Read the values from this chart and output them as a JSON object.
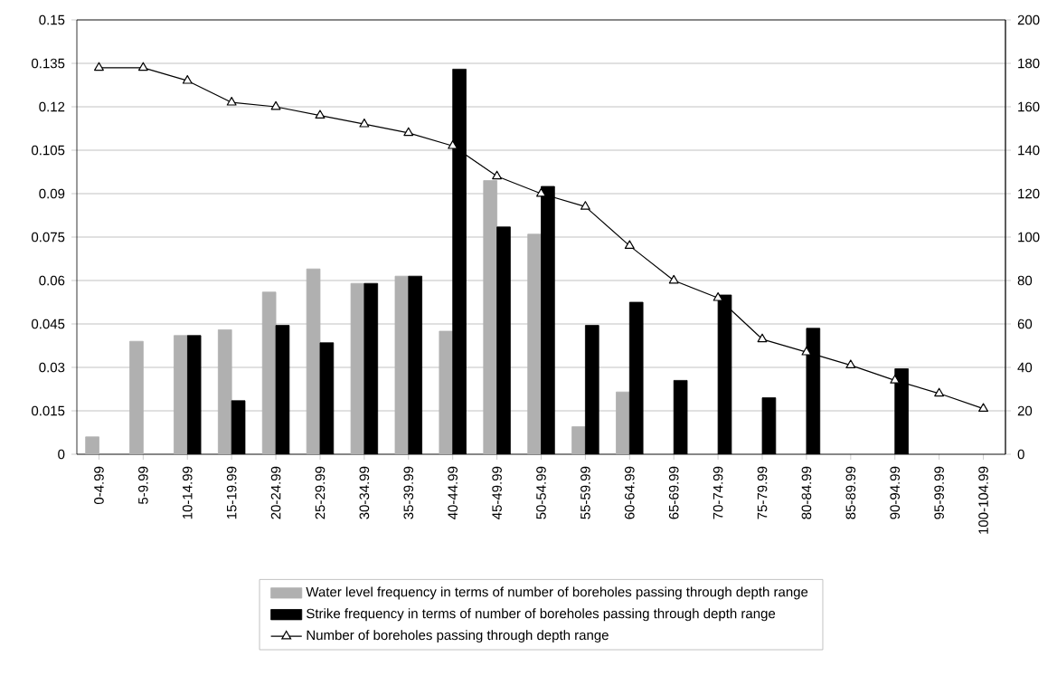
{
  "chart_data": {
    "type": "bar",
    "categories": [
      "0-4.99",
      "5-9.99",
      "10-14.99",
      "15-19.99",
      "20-24.99",
      "25-29.99",
      "30-34.99",
      "35-39.99",
      "40-44.99",
      "45-49.99",
      "50-54.99",
      "55-59.99",
      "60-64.99",
      "65-69.99",
      "70-74.99",
      "75-79.99",
      "80-84.99",
      "85-89.99",
      "90-94.99",
      "95-99.99",
      "100-104.99"
    ],
    "series": [
      {
        "name": "Water level frequency in terms of number of boreholes passing  through depth range",
        "color": "#b0b0b0",
        "values": [
          0.006,
          0.039,
          0.041,
          0.043,
          0.056,
          0.064,
          0.059,
          0.0615,
          0.0425,
          0.0945,
          0.076,
          0.0095,
          0.0215,
          null,
          null,
          null,
          null,
          null,
          null,
          null,
          null
        ]
      },
      {
        "name": "Strike frequency  in terms of number of boreholes passing  through depth range",
        "color": "#000000",
        "values": [
          null,
          null,
          0.041,
          0.0185,
          0.0445,
          0.0385,
          0.059,
          0.0615,
          0.133,
          0.0785,
          0.0925,
          0.0445,
          0.0525,
          0.0255,
          0.055,
          0.0195,
          0.0435,
          null,
          0.0295,
          null,
          null
        ]
      },
      {
        "name": "Number of  boreholes passing through depth range",
        "color": "#000000",
        "type": "line",
        "axis": "y2",
        "values": [
          178,
          178,
          172,
          162,
          160,
          156,
          152,
          148,
          142,
          128,
          120,
          114,
          96,
          80,
          72,
          53,
          47,
          41,
          34,
          28,
          21
        ]
      }
    ],
    "ylim": [
      0,
      0.15
    ],
    "yticks": [
      0,
      0.015,
      0.03,
      0.045,
      0.06,
      0.075,
      0.09,
      0.105,
      0.12,
      0.135,
      0.15
    ],
    "y2lim": [
      0,
      200
    ],
    "y2ticks": [
      0,
      20,
      40,
      60,
      80,
      100,
      120,
      140,
      160,
      180,
      200
    ],
    "grid": "y",
    "legend": "bottom",
    "marker": "triangle"
  }
}
